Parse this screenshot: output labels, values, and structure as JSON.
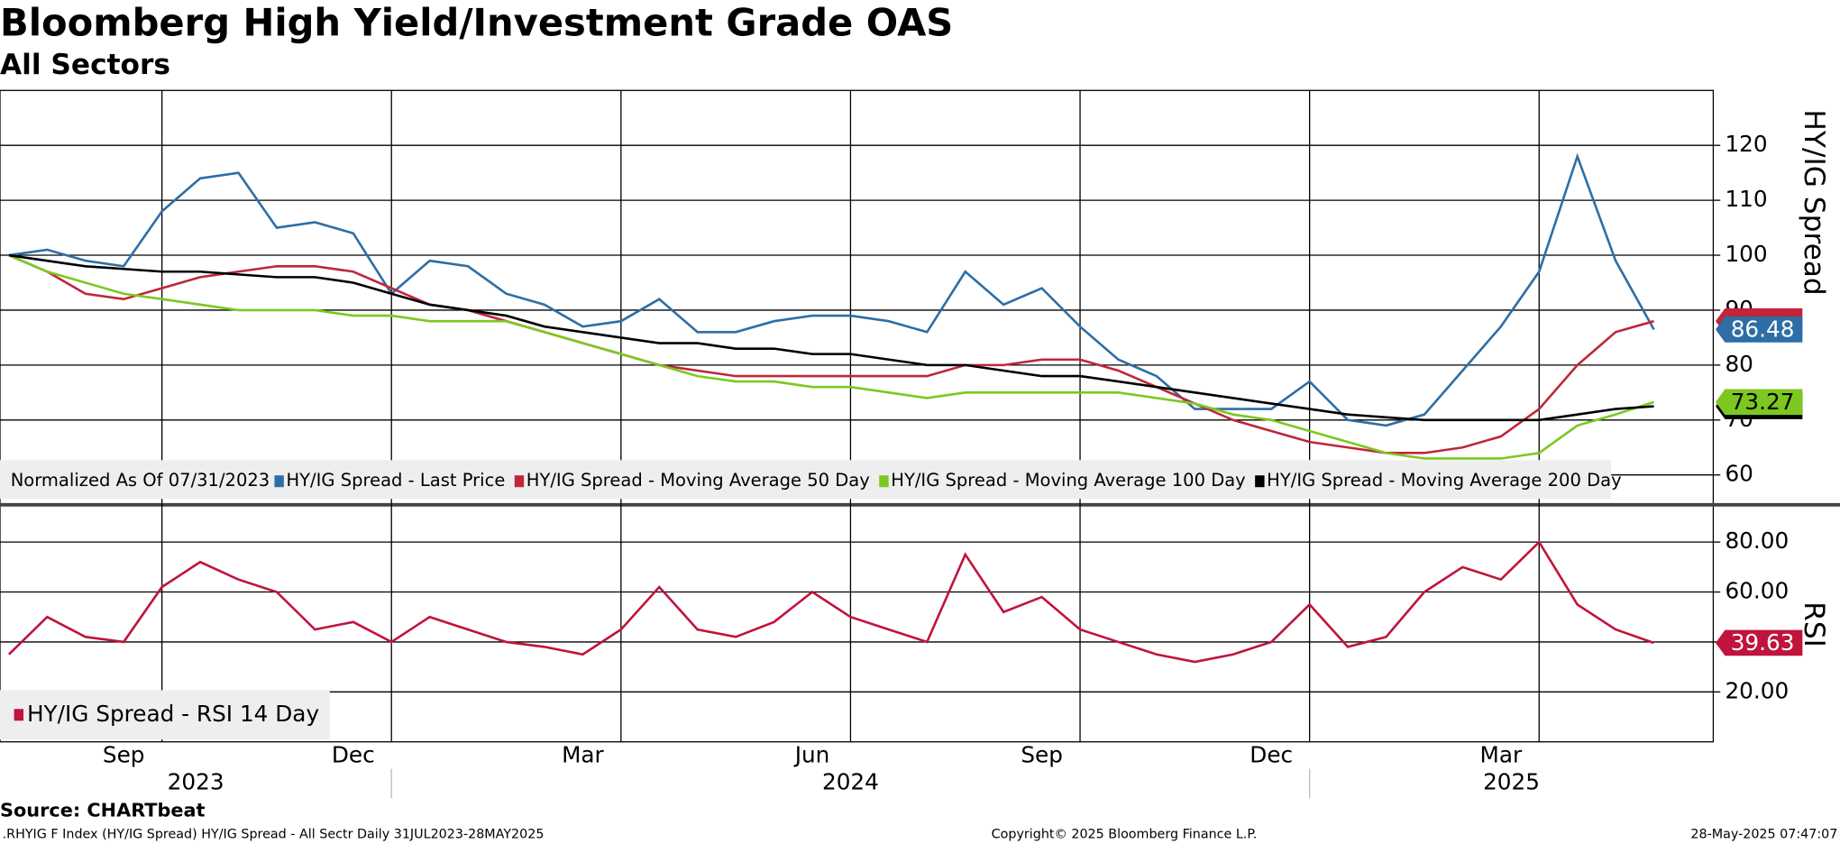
{
  "chart_data": [
    {
      "type": "line",
      "title": "Bloomberg High Yield/Investment Grade OAS",
      "subtitle": "All Sectors",
      "y_label": "HY/IG Spread",
      "legend_prefix": "Normalized As Of 07/31/2023",
      "xlim": [
        "2023-08",
        "2025-06"
      ],
      "xticks": [
        {
          "value": "2023-09",
          "label": "Sep"
        },
        {
          "value": "2023-12",
          "label": "Dec"
        },
        {
          "value": "2024-03",
          "label": "Mar"
        },
        {
          "value": "2024-06",
          "label": "Jun"
        },
        {
          "value": "2024-09",
          "label": "Sep"
        },
        {
          "value": "2024-12",
          "label": "Dec"
        },
        {
          "value": "2025-03",
          "label": "Mar"
        }
      ],
      "years": [
        "2023",
        "2024",
        "2025"
      ],
      "ylim": [
        55,
        130
      ],
      "yticks": [
        60,
        70,
        80,
        90,
        100,
        110,
        120
      ],
      "grid": true,
      "series": [
        {
          "name": "HY/IG Spread - Last Price",
          "color": "#2e6ea6",
          "values": [
            100,
            101,
            99,
            98,
            108,
            114,
            115,
            105,
            106,
            104,
            93,
            99,
            98,
            93,
            91,
            87,
            88,
            92,
            86,
            86,
            88,
            89,
            89,
            88,
            86,
            97,
            91,
            94,
            87,
            81,
            78,
            72,
            72,
            72,
            77,
            70,
            69,
            71,
            79,
            87,
            97,
            118,
            99,
            86.48
          ]
        },
        {
          "name": "HY/IG Spread - Moving Average 50 Day",
          "color": "#c0263a",
          "values": [
            100,
            97,
            93,
            92,
            94,
            96,
            97,
            98,
            98,
            97,
            94,
            91,
            90,
            88,
            86,
            84,
            82,
            80,
            79,
            78,
            78,
            78,
            78,
            78,
            78,
            80,
            80,
            81,
            81,
            79,
            76,
            73,
            70,
            68,
            66,
            65,
            64,
            64,
            65,
            67,
            72,
            80,
            86,
            88
          ]
        },
        {
          "name": "HY/IG Spread - Moving Average 100 Day",
          "color": "#7cc820",
          "values": [
            100,
            97,
            95,
            93,
            92,
            91,
            90,
            90,
            90,
            89,
            89,
            88,
            88,
            88,
            86,
            84,
            82,
            80,
            78,
            77,
            77,
            76,
            76,
            75,
            74,
            75,
            75,
            75,
            75,
            75,
            74,
            73,
            71,
            70,
            68,
            66,
            64,
            63,
            63,
            63,
            64,
            69,
            71,
            73.27
          ]
        },
        {
          "name": "HY/IG Spread - Moving Average 200 Day",
          "color": "#000000",
          "values": [
            100,
            99,
            98,
            97.5,
            97,
            97,
            96.5,
            96,
            96,
            95,
            93,
            91,
            90,
            89,
            87,
            86,
            85,
            84,
            84,
            83,
            83,
            82,
            82,
            81,
            80,
            80,
            79,
            78,
            78,
            77,
            76,
            75,
            74,
            73,
            72,
            71,
            70.5,
            70,
            70,
            70,
            70,
            71,
            72,
            72.5
          ]
        }
      ]
    },
    {
      "type": "line",
      "y_label": "RSI",
      "xlim": [
        "2023-08",
        "2025-06"
      ],
      "ylim": [
        0,
        94
      ],
      "yticks": [
        {
          "value": 20,
          "label": "20.00"
        },
        {
          "value": 40,
          "label": "40.00"
        },
        {
          "value": 60,
          "label": "60.00"
        },
        {
          "value": 80,
          "label": "80.00"
        }
      ],
      "grid": true,
      "series": [
        {
          "name": "HY/IG Spread - RSI 14 Day",
          "color": "#c0143c",
          "values": [
            35,
            50,
            42,
            40,
            62,
            72,
            65,
            60,
            45,
            48,
            40,
            50,
            45,
            40,
            38,
            35,
            45,
            62,
            45,
            42,
            48,
            60,
            50,
            45,
            40,
            75,
            52,
            58,
            45,
            40,
            35,
            32,
            35,
            40,
            55,
            38,
            42,
            60,
            70,
            65,
            80,
            55,
            45,
            39.63
          ]
        }
      ]
    }
  ],
  "footer": {
    "source": "Source: CHARTbeat",
    "ticker": ".RHYIG F Index (HY/IG Spread) HY/IG Spread - All Sectr  Daily 31JUL2023-28MAY2025",
    "copyright": "Copyright© 2025 Bloomberg Finance L.P.",
    "timestamp": "28-May-2025 07:47:07"
  }
}
